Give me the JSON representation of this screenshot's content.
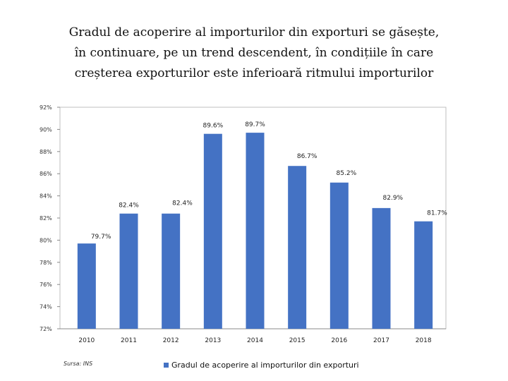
{
  "title_lines": [
    "Gradul de acoperire al importurilor din exporturi se găsește,",
    "în continuare, pe un trend descendent, în condițiile în care",
    "creșterea exporturilor este inferioară ritmului importurilor"
  ],
  "source_note": "Sursa: INS",
  "colors": {
    "bar": "#4472C4",
    "axis": "#888888",
    "grid": "#bfbfbf"
  },
  "chart_data": {
    "type": "bar",
    "title": "Gradul de acoperire al importurilor din exporturi se găsește, în continuare, pe un trend descendent, în condițiile în care creșterea exporturilor este inferioară ritmului importurilor",
    "categories": [
      "2010",
      "2011",
      "2012",
      "2013",
      "2014",
      "2015",
      "2016",
      "2017",
      "2018"
    ],
    "series": [
      {
        "name": "Gradul de acoperire al importurilor din exporturi",
        "values": [
          79.7,
          82.4,
          82.4,
          89.6,
          89.7,
          86.7,
          85.2,
          82.9,
          81.7
        ],
        "labels": [
          "79.7%",
          "82.4%",
          "82.4%",
          "89.6%",
          "89.7%",
          "86.7%",
          "85.2%",
          "82.9%",
          "81.7%"
        ]
      }
    ],
    "ylim": [
      72,
      92
    ],
    "yticks": [
      72,
      74,
      76,
      78,
      80,
      82,
      84,
      86,
      88,
      90,
      92
    ],
    "ytick_labels": [
      "72%",
      "74%",
      "76%",
      "78%",
      "80%",
      "82%",
      "84%",
      "86%",
      "88%",
      "90%",
      "92%"
    ],
    "xlabel": "",
    "ylabel": "",
    "legend": "bottom-center",
    "grid": false
  }
}
